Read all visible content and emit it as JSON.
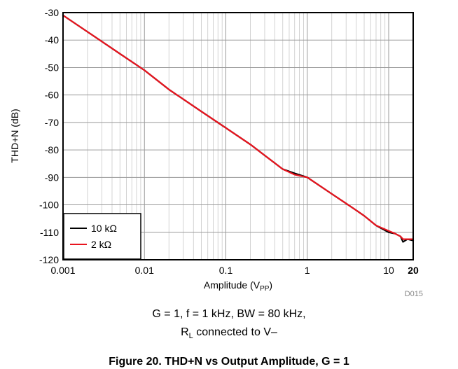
{
  "chart_data": {
    "type": "line",
    "title": "",
    "xlabel_main": "Amplitude (V",
    "xlabel_sub": "PP",
    "xlabel_end": ")",
    "ylabel": "THD+N (dB)",
    "xscale": "log",
    "xlim": [
      0.001,
      20
    ],
    "ylim": [
      -120,
      -30
    ],
    "grid": true,
    "legend_position": "bottom-left",
    "x_ticks": [
      {
        "value": 0.001,
        "label": "0.001"
      },
      {
        "value": 0.01,
        "label": "0.01"
      },
      {
        "value": 0.1,
        "label": "0.1"
      },
      {
        "value": 1,
        "label": "1"
      },
      {
        "value": 10,
        "label": "10"
      },
      {
        "value": 20,
        "label": "20"
      }
    ],
    "y_ticks": [
      {
        "value": -30,
        "label": "-30"
      },
      {
        "value": -40,
        "label": "-40"
      },
      {
        "value": -50,
        "label": "-50"
      },
      {
        "value": -60,
        "label": "-60"
      },
      {
        "value": -70,
        "label": "-70"
      },
      {
        "value": -80,
        "label": "-80"
      },
      {
        "value": -90,
        "label": "-90"
      },
      {
        "value": -100,
        "label": "-100"
      },
      {
        "value": -110,
        "label": "-110"
      },
      {
        "value": -120,
        "label": "-120"
      }
    ],
    "series": [
      {
        "name": "10 kΩ",
        "color": "#000000",
        "x": [
          0.001,
          0.002,
          0.005,
          0.01,
          0.02,
          0.05,
          0.1,
          0.2,
          0.3,
          0.5,
          0.7,
          1,
          2,
          3,
          4,
          5,
          7,
          10,
          12,
          14,
          15,
          17,
          20
        ],
        "y": [
          -31,
          -37,
          -45,
          -51,
          -58,
          -66,
          -72,
          -78,
          -82,
          -87,
          -88.5,
          -90,
          -96,
          -99.5,
          -102,
          -104,
          -107.5,
          -110,
          -110.5,
          -111.5,
          -113.5,
          -112.5,
          -113
        ]
      },
      {
        "name": "2 kΩ",
        "color": "#e8141e",
        "x": [
          0.001,
          0.002,
          0.005,
          0.01,
          0.02,
          0.05,
          0.1,
          0.2,
          0.3,
          0.5,
          0.7,
          1,
          2,
          3,
          4,
          5,
          7,
          10,
          12,
          14,
          15,
          17,
          20
        ],
        "y": [
          -31,
          -37,
          -45,
          -51,
          -58,
          -66,
          -72,
          -78,
          -82,
          -87,
          -89,
          -90,
          -96,
          -99.5,
          -102,
          -104,
          -107.5,
          -109.5,
          -110.5,
          -111.5,
          -112.5,
          -112.5,
          -112.5
        ]
      }
    ]
  },
  "figure_id": "D015",
  "conditions": {
    "line1": "G = 1, f = 1 kHz, BW = 80 kHz,",
    "line2_main": "R",
    "line2_sub": "L",
    "line2_end": " connected to V–"
  },
  "caption": "Figure 20. THD+N vs Output Amplitude, G = 1"
}
